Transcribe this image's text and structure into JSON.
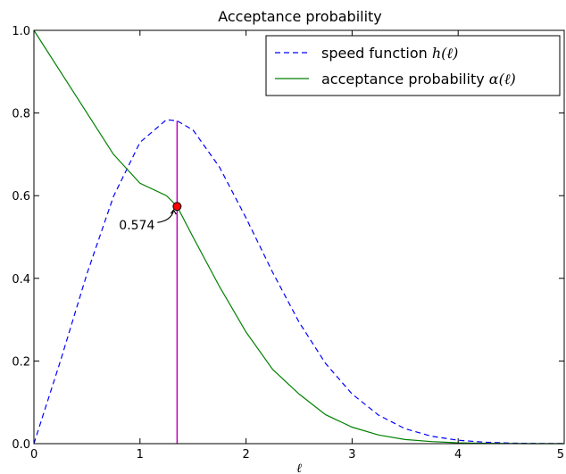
{
  "chart_data": {
    "type": "line",
    "title": "Acceptance probability",
    "xlabel": "ℓ",
    "ylabel": "",
    "xlim": [
      0,
      5
    ],
    "ylim": [
      0,
      1
    ],
    "x_ticks": [
      "0",
      "1",
      "2",
      "3",
      "4",
      "5"
    ],
    "y_ticks": [
      "0.0",
      "0.2",
      "0.4",
      "0.6",
      "0.8",
      "1.0"
    ],
    "grid": false,
    "legend_position": "top-right",
    "x": [
      0,
      0.25,
      0.5,
      0.75,
      1.0,
      1.25,
      1.35,
      1.5,
      1.75,
      2.0,
      2.25,
      2.5,
      2.75,
      3.0,
      3.25,
      3.5,
      3.75,
      4.0,
      4.25,
      4.5,
      4.75,
      5.0
    ],
    "series": [
      {
        "name": "speed function",
        "name_math": "h(ℓ)",
        "style": "dashed",
        "color": "#0000ff",
        "values": [
          0,
          0.2,
          0.411,
          0.598,
          0.729,
          0.784,
          0.781,
          0.759,
          0.669,
          0.546,
          0.415,
          0.294,
          0.194,
          0.12,
          0.069,
          0.036,
          0.018,
          0.0081,
          0.0034,
          0.0013,
          0.0005,
          0.0002
        ]
      },
      {
        "name": "acceptance probability",
        "name_math": "α(ℓ)",
        "style": "solid",
        "color": "#008000",
        "values": [
          1.0,
          0.9,
          0.8,
          0.7,
          0.63,
          0.6,
          0.574,
          0.5,
          0.38,
          0.27,
          0.18,
          0.12,
          0.07,
          0.04,
          0.021,
          0.01,
          0.005,
          0.002,
          0.0008,
          0.0003,
          0.0001,
          0.0
        ]
      }
    ],
    "vline": {
      "x": 1.35,
      "y_top": 0.781,
      "color": "#bf00bf"
    },
    "marker": {
      "x": 1.35,
      "y": 0.574,
      "color": "#ff0000"
    },
    "annotation": {
      "text": "0.574",
      "x": 1.35,
      "y": 0.574
    }
  }
}
